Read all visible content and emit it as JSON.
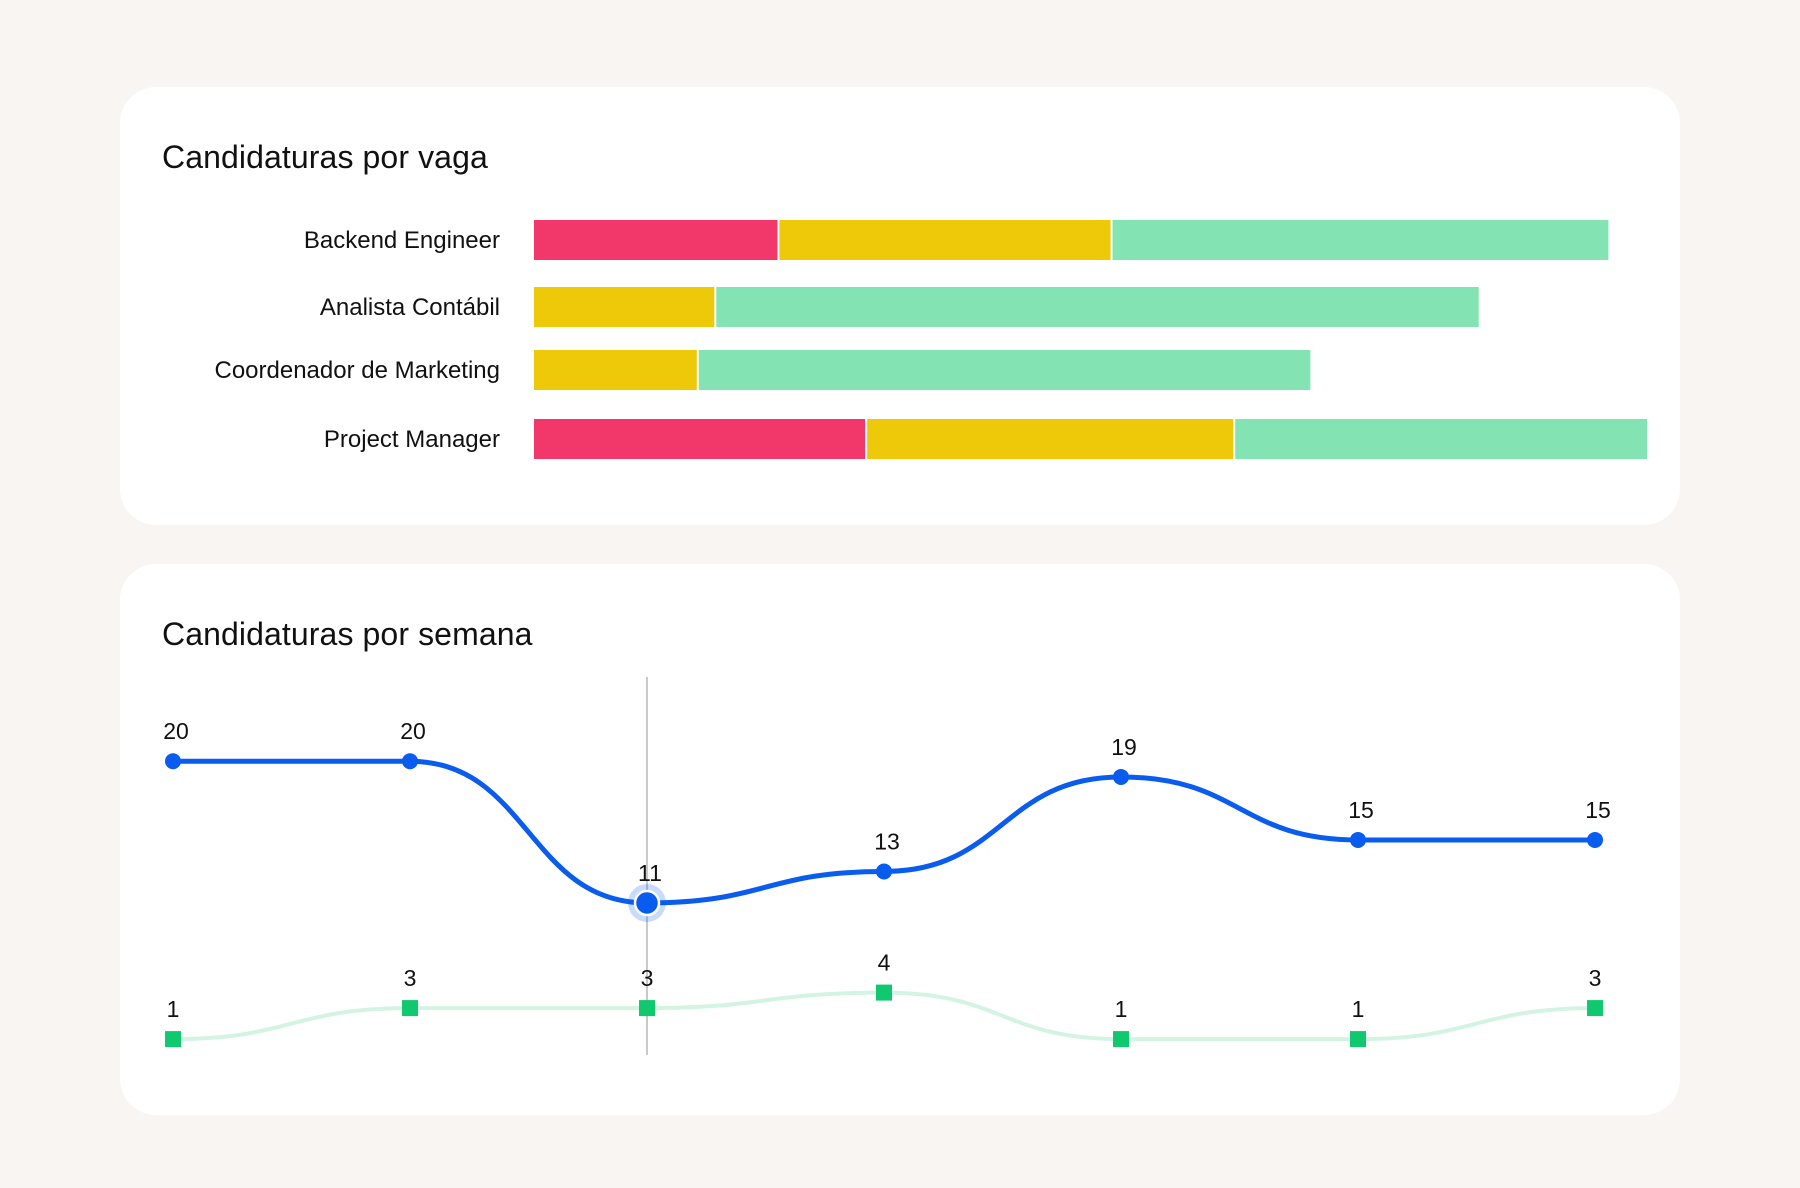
{
  "colors": {
    "red": "#f2386a",
    "yellow": "#eec909",
    "green": "#83e3b3",
    "blue": "#0a5cef",
    "light_green_line": "#d3f4e3",
    "green_marker": "#10c86d",
    "background": "#f8f5f2"
  },
  "bar_card": {
    "title": "Candidaturas por vaga"
  },
  "line_card": {
    "title": "Candidaturas por semana"
  },
  "chart_data": [
    {
      "type": "bar",
      "orientation": "horizontal",
      "stacked": true,
      "title": "Candidaturas por vaga",
      "categories": [
        "Backend Engineer",
        "Analista Contábil",
        "Coordenador de Marketing",
        "Project Manager"
      ],
      "series": [
        {
          "color": "#f2386a",
          "values": [
            7,
            0,
            0,
            9.5
          ]
        },
        {
          "color": "#eec909",
          "values": [
            9.5,
            5.2,
            4.7,
            10.5
          ]
        },
        {
          "color": "#83e3b3",
          "values": [
            14.2,
            21.8,
            17.5,
            11.8
          ]
        }
      ],
      "xlim": [
        0,
        32
      ],
      "grid": false
    },
    {
      "type": "line",
      "title": "Candidaturas por semana",
      "x": [
        1,
        2,
        3,
        4,
        5,
        6,
        7
      ],
      "series": [
        {
          "color": "#0a5cef",
          "values": [
            20,
            20,
            11,
            13,
            19,
            15,
            15
          ]
        },
        {
          "color": "#10c86d",
          "values": [
            1,
            3,
            3,
            4,
            1,
            1,
            3
          ]
        }
      ],
      "highlighted_index": 2,
      "grid": false
    }
  ]
}
